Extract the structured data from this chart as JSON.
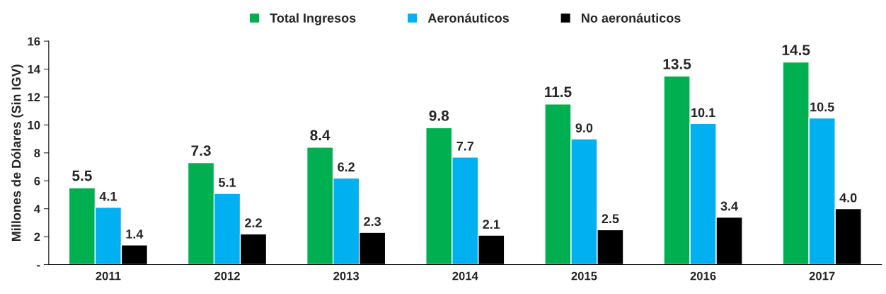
{
  "chart_data": {
    "type": "bar",
    "ylabel": "Millones de Dólares (Sin IGV)",
    "categories": [
      "2011",
      "2012",
      "2013",
      "2014",
      "2015",
      "2016",
      "2017"
    ],
    "series": [
      {
        "name": "Total Ingresos",
        "color": "#00b050",
        "values": [
          5.5,
          7.3,
          8.4,
          9.8,
          11.5,
          13.5,
          14.5
        ],
        "value_labels": [
          "5.5",
          "7.3",
          "8.4",
          "9.8",
          "11.5",
          "13.5",
          "14.5"
        ]
      },
      {
        "name": "Aeronáuticos",
        "color": "#00b0f0",
        "values": [
          4.1,
          5.1,
          6.2,
          7.7,
          9.0,
          10.1,
          10.5
        ],
        "value_labels": [
          "4.1",
          "5.1",
          "6.2",
          "7.7",
          "9.0",
          "10.1",
          "10.5"
        ]
      },
      {
        "name": "No aeronáuticos",
        "color": "#000000",
        "values": [
          1.4,
          2.2,
          2.3,
          2.1,
          2.5,
          3.4,
          4.0
        ],
        "value_labels": [
          "1.4",
          "2.2",
          "2.3",
          "2.1",
          "2.5",
          "3.4",
          "4.0"
        ]
      }
    ],
    "ylim": [
      0,
      16
    ],
    "yticks": [
      {
        "value": 0,
        "label": "-"
      },
      2,
      4,
      6,
      8,
      10,
      12,
      14,
      16
    ],
    "grid": false,
    "legend": "top"
  }
}
